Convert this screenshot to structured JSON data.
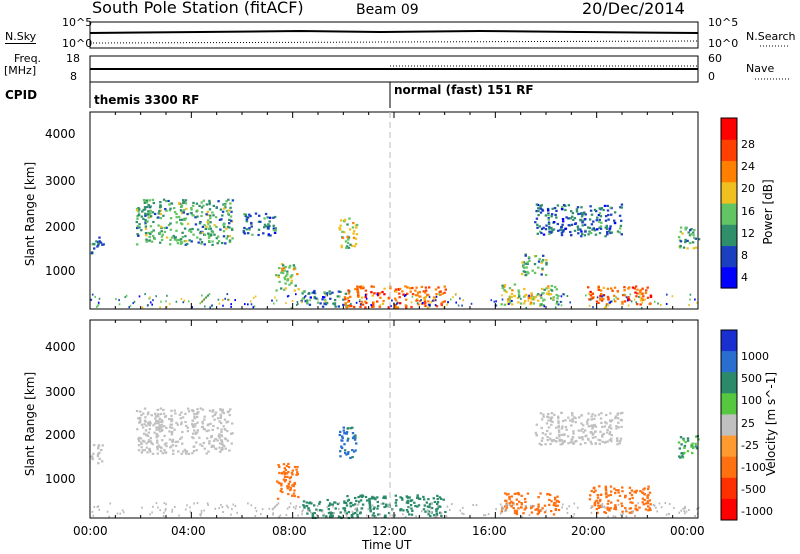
{
  "header": {
    "title": "South Pole Station (fitACF)",
    "beam": "Beam 09",
    "date": "20/Dec/2014"
  },
  "nsky_panel": {
    "left_label": "N.Sky",
    "right_label": "N.Search",
    "ticks_left": [
      "10^5",
      "10^0"
    ],
    "ticks_right": [
      "10^5",
      "10^0"
    ]
  },
  "freq_panel": {
    "left_label_top": "Freq.",
    "left_label_bottom": "[MHz]",
    "right_label": "Nave",
    "ticks_left": [
      "18",
      "8"
    ],
    "ticks_right": [
      "60",
      "0"
    ]
  },
  "cpid_panel": {
    "label": "CPID",
    "segments": [
      "themis 3300 RF",
      "normal (fast) 151 RF"
    ]
  },
  "colors": {
    "power": [
      "#0000ff",
      "#1a3fc0",
      "#2f8f6a",
      "#62c462",
      "#f0c020",
      "#ff8000",
      "#ff4000",
      "#ff0000"
    ],
    "velocity": [
      "#1a2fd0",
      "#2a6fd0",
      "#2a8a6a",
      "#55c840",
      "#c0c0c0",
      "#ff9a30",
      "#ff7010",
      "#ff3000",
      "#ff0000"
    ]
  },
  "chart_data": [
    {
      "type": "heatmap",
      "name": "Power",
      "xlabel": "",
      "ylabel": "Slant Range [km]",
      "xlim": [
        0,
        24
      ],
      "ylim": [
        180,
        4500
      ],
      "yticks": [
        "1000",
        "2000",
        "3000",
        "4000"
      ],
      "colorbar": {
        "label": "Power [dB]",
        "ticks": [
          "28",
          "24",
          "20",
          "16",
          "12",
          "8",
          "4"
        ],
        "range": [
          0,
          32
        ]
      },
      "regions": [
        {
          "t": [
            0,
            0.5
          ],
          "r": [
            1400,
            1800
          ],
          "v": 8
        },
        {
          "t": [
            1.8,
            5.6
          ],
          "r": [
            1600,
            2600
          ],
          "v": 12
        },
        {
          "t": [
            6.0,
            7.3
          ],
          "r": [
            1800,
            2300
          ],
          "v": 8
        },
        {
          "t": [
            7.3,
            8.2
          ],
          "r": [
            600,
            1200
          ],
          "v": 16
        },
        {
          "t": [
            8.3,
            10.2
          ],
          "r": [
            250,
            600
          ],
          "v": 8
        },
        {
          "t": [
            9.8,
            10.5
          ],
          "r": [
            1500,
            2200
          ],
          "v": 16
        },
        {
          "t": [
            10.0,
            14.0
          ],
          "r": [
            230,
            700
          ],
          "v": 24
        },
        {
          "t": [
            16.2,
            18.5
          ],
          "r": [
            280,
            750
          ],
          "v": 16
        },
        {
          "t": [
            17.0,
            18.0
          ],
          "r": [
            900,
            1400
          ],
          "v": 12
        },
        {
          "t": [
            17.5,
            21.0
          ],
          "r": [
            1800,
            2500
          ],
          "v": 8
        },
        {
          "t": [
            19.6,
            22.1
          ],
          "r": [
            300,
            700
          ],
          "v": 24
        },
        {
          "t": [
            23.2,
            24.0
          ],
          "r": [
            1500,
            2000
          ],
          "v": 12
        }
      ]
    },
    {
      "type": "heatmap",
      "name": "Velocity",
      "xlabel": "Time UT",
      "ylabel": "Slant Range [km]",
      "xlim": [
        0,
        24
      ],
      "ylim": [
        180,
        4500
      ],
      "xticks": [
        "00:00",
        "04:00",
        "08:00",
        "12:00",
        "16:00",
        "20:00",
        "00:00"
      ],
      "yticks": [
        "1000",
        "2000",
        "3000",
        "4000"
      ],
      "colorbar": {
        "label": "Velocity [m s^-1]",
        "ticks": [
          "1000",
          "500",
          "100",
          "25",
          "-25",
          "-100",
          "-500",
          "-1000"
        ]
      },
      "regions": [
        {
          "t": [
            0,
            0.5
          ],
          "r": [
            1400,
            1800
          ],
          "v": 0
        },
        {
          "t": [
            1.8,
            5.6
          ],
          "r": [
            1600,
            2600
          ],
          "v": 0
        },
        {
          "t": [
            7.3,
            8.2
          ],
          "r": [
            600,
            1400
          ],
          "v": -300
        },
        {
          "t": [
            8.3,
            10.2
          ],
          "r": [
            200,
            600
          ],
          "v": 200
        },
        {
          "t": [
            9.8,
            10.5
          ],
          "r": [
            1500,
            2200
          ],
          "v": 600
        },
        {
          "t": [
            10.0,
            14.0
          ],
          "r": [
            230,
            700
          ],
          "v": 200
        },
        {
          "t": [
            16.2,
            18.5
          ],
          "r": [
            280,
            750
          ],
          "v": -300
        },
        {
          "t": [
            17.5,
            21.0
          ],
          "r": [
            1800,
            2500
          ],
          "v": 0
        },
        {
          "t": [
            19.6,
            22.1
          ],
          "r": [
            300,
            900
          ],
          "v": -300
        },
        {
          "t": [
            23.2,
            24.0
          ],
          "r": [
            1500,
            2000
          ],
          "v": 100
        }
      ]
    }
  ]
}
